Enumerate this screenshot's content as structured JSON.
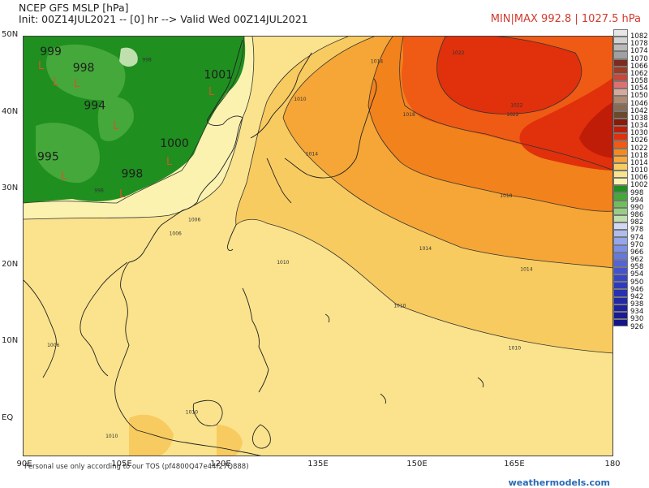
{
  "header": {
    "title": "NCEP GFS MSLP [hPa]",
    "init_valid": "Init: 00Z14JUL2021 -- [0] hr --> Valid Wed 00Z14JUL2021",
    "minmax": "MIN|MAX 992.8 | 1027.5 hPa"
  },
  "axes": {
    "lat_labels": [
      "50N",
      "40N",
      "30N",
      "20N",
      "10N",
      "EQ"
    ],
    "lon_labels": [
      "90E",
      "105E",
      "120E",
      "135E",
      "150E",
      "165E",
      "180"
    ]
  },
  "colorbar": {
    "levels": [
      "1082",
      "1078",
      "1074",
      "1070",
      "1066",
      "1062",
      "1058",
      "1054",
      "1050",
      "1046",
      "1042",
      "1038",
      "1034",
      "1030",
      "1026",
      "1022",
      "1018",
      "1014",
      "1010",
      "1006",
      "1002",
      "998",
      "994",
      "990",
      "986",
      "982",
      "978",
      "974",
      "970",
      "966",
      "962",
      "958",
      "954",
      "950",
      "946",
      "942",
      "938",
      "934",
      "930",
      "926"
    ],
    "colors": [
      "#e6e6e6",
      "#d2d2d2",
      "#b9b9b9",
      "#a0a0a0",
      "#7d2b1e",
      "#a03a24",
      "#c8463a",
      "#e07070",
      "#d6a99a",
      "#b08a70",
      "#8a6a50",
      "#6a4a2a",
      "#8a1a08",
      "#c01d08",
      "#e0300c",
      "#f05a14",
      "#f58a1c",
      "#f7a838",
      "#f7cc60",
      "#f8e48e",
      "#fbf2b0",
      "#1f8f1f",
      "#45a83a",
      "#6fbe5a",
      "#97cf82",
      "#bfe0ad",
      "#d2d8f2",
      "#b0bcee",
      "#95a6ec",
      "#7a8fe8",
      "#6478e0",
      "#5363d8",
      "#4353cf",
      "#3645c6",
      "#2e3abd",
      "#2730b2",
      "#2227a8",
      "#1e209e",
      "#1a1a94",
      "#15158a"
    ]
  },
  "map": {
    "pressure_labels": [
      {
        "text": "995",
        "lon": 104.5,
        "lat": 50.6
      },
      {
        "text": "999",
        "lon": 92.5,
        "lat": 47.6
      },
      {
        "text": "998",
        "lon": 97.5,
        "lat": 45.5
      },
      {
        "text": "1001",
        "lon": 117.5,
        "lat": 44.6
      },
      {
        "text": "994",
        "lon": 99.2,
        "lat": 40.6
      },
      {
        "text": "1000",
        "lon": 110.8,
        "lat": 35.7
      },
      {
        "text": "995",
        "lon": 92.1,
        "lat": 34.0
      },
      {
        "text": "998",
        "lon": 104.9,
        "lat": 31.8
      }
    ],
    "low_markers": [
      "L",
      "L",
      "L",
      "L",
      "L",
      "L",
      "L",
      "L"
    ],
    "contour_labels": [
      {
        "text": "998",
        "lon": 108.1,
        "lat": 46.8
      },
      {
        "text": "1014",
        "lon": 142.9,
        "lat": 46.6
      },
      {
        "text": "1022",
        "lon": 155.3,
        "lat": 47.7
      },
      {
        "text": "1010",
        "lon": 131.2,
        "lat": 41.7
      },
      {
        "text": "1018",
        "lon": 147.8,
        "lat": 39.7
      },
      {
        "text": "1022",
        "lon": 163.6,
        "lat": 39.7
      },
      {
        "text": "1022",
        "lon": 164.2,
        "lat": 40.9
      },
      {
        "text": "1014",
        "lon": 133.0,
        "lat": 34.6
      },
      {
        "text": "998",
        "lon": 100.8,
        "lat": 29.9
      },
      {
        "text": "1006",
        "lon": 115.1,
        "lat": 26.1
      },
      {
        "text": "1006",
        "lon": 112.2,
        "lat": 24.3
      },
      {
        "text": "1018",
        "lon": 162.6,
        "lat": 29.2
      },
      {
        "text": "1014",
        "lon": 150.3,
        "lat": 22.4
      },
      {
        "text": "1014",
        "lon": 165.7,
        "lat": 19.7
      },
      {
        "text": "1010",
        "lon": 128.6,
        "lat": 20.6
      },
      {
        "text": "1010",
        "lon": 146.4,
        "lat": 15.0
      },
      {
        "text": "1010",
        "lon": 163.9,
        "lat": 9.5
      },
      {
        "text": "1006",
        "lon": 93.6,
        "lat": 9.9
      },
      {
        "text": "1010",
        "lon": 114.7,
        "lat": 1.2
      },
      {
        "text": "1010",
        "lon": 102.5,
        "lat": -1.9
      }
    ]
  },
  "footer": {
    "disclaimer": "Personal use only according to our TOS (pf4800Q47e44f27Q888)",
    "watermark": "weathermodels.com"
  }
}
